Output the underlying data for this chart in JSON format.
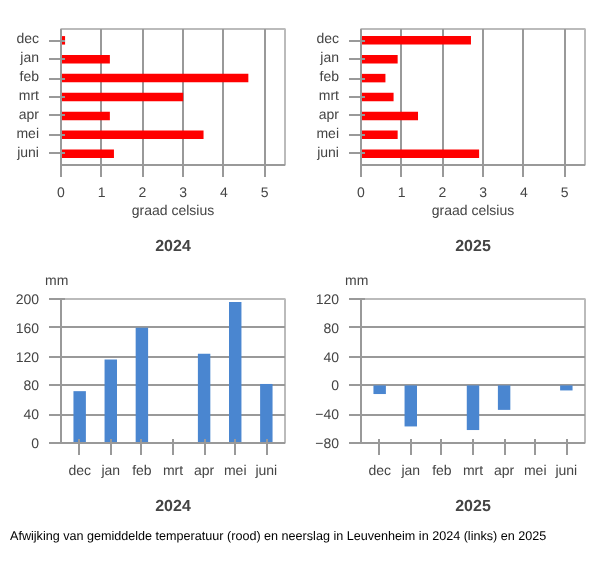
{
  "chart_data": [
    {
      "type": "bar",
      "orientation": "horizontal",
      "title": "2024",
      "xlabel": "graad celsius",
      "categories": [
        "dec",
        "jan",
        "feb",
        "mrt",
        "apr",
        "mei",
        "juni"
      ],
      "values": [
        0.1,
        1.2,
        4.6,
        3.0,
        1.2,
        3.5,
        1.3
      ],
      "color": "#ff0000",
      "xlim": [
        0,
        5.5
      ],
      "xticks": [
        0,
        1,
        2,
        3,
        4,
        5
      ],
      "grid": "x"
    },
    {
      "type": "bar",
      "orientation": "horizontal",
      "title": "2025",
      "xlabel": "graad celsius",
      "categories": [
        "dec",
        "jan",
        "feb",
        "mrt",
        "apr",
        "mei",
        "juni"
      ],
      "values": [
        2.7,
        0.9,
        0.6,
        0.8,
        1.4,
        0.9,
        2.9
      ],
      "color": "#ff0000",
      "xlim": [
        0,
        5.5
      ],
      "xticks": [
        0,
        1,
        2,
        3,
        4,
        5
      ],
      "grid": "x"
    },
    {
      "type": "bar",
      "title": "2024",
      "ylabel": "mm",
      "categories": [
        "dec",
        "jan",
        "feb",
        "mrt",
        "apr",
        "mei",
        "juni"
      ],
      "values": [
        72,
        116,
        160,
        null,
        124,
        196,
        82
      ],
      "color": "#4a86d0",
      "ylim": [
        0,
        200
      ],
      "yticks": [
        0,
        40,
        80,
        120,
        160,
        200
      ],
      "grid": "y"
    },
    {
      "type": "bar",
      "title": "2025",
      "ylabel": "mm",
      "categories": [
        "dec",
        "jan",
        "feb",
        "mrt",
        "apr",
        "mei",
        "juni"
      ],
      "values": [
        -12,
        -57,
        null,
        -62,
        -34,
        null,
        -7
      ],
      "color": "#4a86d0",
      "ylim": [
        -80,
        120
      ],
      "yticks": [
        -80,
        -40,
        0,
        40,
        80,
        120
      ],
      "grid": "y",
      "annotations": [
        "Afwijking van gemiddelde temperatuur (rood) en neerslag in Leuvenheim in 2024 (links) en 2025"
      ]
    }
  ]
}
